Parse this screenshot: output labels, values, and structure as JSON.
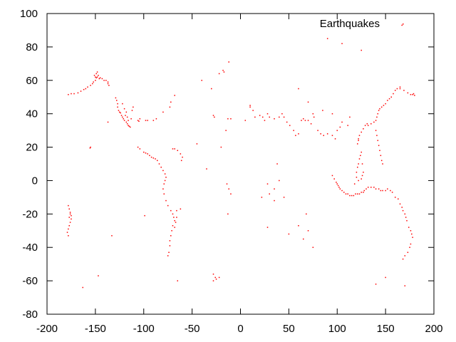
{
  "chart_data": {
    "type": "scatter",
    "title": "",
    "xlabel": "",
    "ylabel": "",
    "xlim": [
      -200,
      200
    ],
    "ylim": [
      -80,
      100
    ],
    "x_ticks": [
      -200,
      -150,
      -100,
      -50,
      0,
      50,
      100,
      150,
      200
    ],
    "y_ticks": [
      -80,
      -60,
      -40,
      -20,
      0,
      20,
      40,
      60,
      80,
      100
    ],
    "x_tick_labels": [
      "-200",
      "-150",
      "-100",
      "-50",
      "0",
      "50",
      "100",
      "150",
      "200"
    ],
    "y_tick_labels": [
      "-80",
      "-60",
      "-40",
      "-20",
      "0",
      "20",
      "40",
      "60",
      "80",
      "100"
    ],
    "grid": false,
    "legend_position": "top-right",
    "series": [
      {
        "name": "Earthquakes",
        "color": "#ff0000",
        "marker": "dot",
        "points": [
          [
            -178,
            51.5
          ],
          [
            -175,
            52
          ],
          [
            -172,
            52
          ],
          [
            -168,
            52.5
          ],
          [
            -165,
            53.5
          ],
          [
            -162,
            54.5
          ],
          [
            -160,
            55
          ],
          [
            -158,
            56
          ],
          [
            -155,
            57
          ],
          [
            -153,
            58
          ],
          [
            -152,
            59
          ],
          [
            -150,
            60
          ],
          [
            -149,
            61.5
          ],
          [
            -148,
            62
          ],
          [
            -147,
            63
          ],
          [
            -146,
            61
          ],
          [
            -145,
            61.5
          ],
          [
            -150,
            62
          ],
          [
            -151,
            63
          ],
          [
            -149,
            64
          ],
          [
            -148,
            65
          ],
          [
            -143,
            61
          ],
          [
            -141,
            60
          ],
          [
            -139,
            60
          ],
          [
            -137,
            59
          ],
          [
            -137,
            58
          ],
          [
            -136,
            57
          ],
          [
            -129,
            49.5
          ],
          [
            -128,
            48
          ],
          [
            -127,
            46
          ],
          [
            -127,
            44
          ],
          [
            -126,
            42
          ],
          [
            -125,
            41
          ],
          [
            -124,
            40.5
          ],
          [
            -123,
            39
          ],
          [
            -122,
            38
          ],
          [
            -121,
            37
          ],
          [
            -120,
            36
          ],
          [
            -118,
            35
          ],
          [
            -117,
            34
          ],
          [
            -116,
            33
          ],
          [
            -115,
            32.5
          ],
          [
            -114,
            32
          ],
          [
            -116,
            36
          ],
          [
            -117,
            38
          ],
          [
            -119,
            39
          ],
          [
            -118,
            41
          ],
          [
            -120,
            43
          ],
          [
            -122,
            46
          ],
          [
            -111,
            44
          ],
          [
            -112,
            42
          ],
          [
            -113,
            37
          ],
          [
            -106,
            36
          ],
          [
            -105,
            35.5
          ],
          [
            -104,
            37
          ],
          [
            -98,
            36
          ],
          [
            -96,
            36
          ],
          [
            -90,
            36
          ],
          [
            -87,
            37
          ],
          [
            -80,
            41
          ],
          [
            -73,
            44
          ],
          [
            -72,
            47
          ],
          [
            -68,
            51
          ],
          [
            -155.5,
            19.5
          ],
          [
            -155,
            20
          ],
          [
            -106,
            20
          ],
          [
            -104,
            19
          ],
          [
            -100,
            17
          ],
          [
            -98,
            16.5
          ],
          [
            -96,
            16
          ],
          [
            -94,
            15
          ],
          [
            -92,
            14
          ],
          [
            -90,
            13.5
          ],
          [
            -88,
            13
          ],
          [
            -86,
            12
          ],
          [
            -84,
            10
          ],
          [
            -82,
            8
          ],
          [
            -80,
            6
          ],
          [
            -78,
            4
          ],
          [
            -77,
            2
          ],
          [
            -78,
            0
          ],
          [
            -79,
            -2
          ],
          [
            -80,
            -5
          ],
          [
            -79,
            -8
          ],
          [
            -77,
            -12
          ],
          [
            -75,
            -15
          ],
          [
            -72,
            -18
          ],
          [
            -70,
            -20
          ],
          [
            -69,
            -22
          ],
          [
            -68,
            -24
          ],
          [
            -70,
            -27
          ],
          [
            -71,
            -30
          ],
          [
            -72,
            -33
          ],
          [
            -73,
            -36
          ],
          [
            -73,
            -39
          ],
          [
            -74,
            -43
          ],
          [
            -75,
            -45
          ],
          [
            -66,
            -22
          ],
          [
            -67,
            -25
          ],
          [
            -68,
            -28
          ],
          [
            -66,
            -18
          ],
          [
            -62,
            -17
          ],
          [
            -70,
            19
          ],
          [
            -68,
            19
          ],
          [
            -65,
            18
          ],
          [
            -62,
            16
          ],
          [
            -60,
            14
          ],
          [
            -61,
            12
          ],
          [
            -178,
            -15
          ],
          [
            -177,
            -17
          ],
          [
            -176,
            -19
          ],
          [
            -175,
            -21
          ],
          [
            -175,
            -23
          ],
          [
            -176,
            -25
          ],
          [
            -177,
            -27
          ],
          [
            -178,
            -29
          ],
          [
            -179,
            -31
          ],
          [
            -178,
            -33
          ],
          [
            -176,
            -20
          ],
          [
            -177,
            -22
          ],
          [
            -28,
            -56
          ],
          [
            -26,
            -58
          ],
          [
            -25,
            -59
          ],
          [
            -22,
            -58
          ],
          [
            -28,
            -60
          ],
          [
            -40,
            60
          ],
          [
            -30,
            55
          ],
          [
            -17,
            65
          ],
          [
            -18,
            66
          ],
          [
            -22,
            64
          ],
          [
            -12,
            71
          ],
          [
            -13,
            37
          ],
          [
            -10,
            37
          ],
          [
            -15,
            30
          ],
          [
            -27,
            38
          ],
          [
            -28,
            39
          ],
          [
            -20,
            20
          ],
          [
            -35,
            7
          ],
          [
            -14,
            -2
          ],
          [
            -12,
            -5
          ],
          [
            -10,
            -8
          ],
          [
            -13,
            -20
          ],
          [
            -45,
            22
          ],
          [
            10,
            44
          ],
          [
            13,
            42
          ],
          [
            15,
            38
          ],
          [
            20,
            39
          ],
          [
            23,
            38
          ],
          [
            25,
            36
          ],
          [
            28,
            40
          ],
          [
            30,
            38
          ],
          [
            35,
            37
          ],
          [
            40,
            38
          ],
          [
            43,
            40
          ],
          [
            45,
            38
          ],
          [
            48,
            35
          ],
          [
            51,
            33
          ],
          [
            55,
            30
          ],
          [
            57,
            27
          ],
          [
            60,
            28
          ],
          [
            63,
            36
          ],
          [
            65,
            37
          ],
          [
            67,
            36
          ],
          [
            70,
            36
          ],
          [
            73,
            34
          ],
          [
            76,
            38
          ],
          [
            80,
            30
          ],
          [
            83,
            28
          ],
          [
            86,
            27
          ],
          [
            90,
            28
          ],
          [
            95,
            27
          ],
          [
            98,
            25
          ],
          [
            100,
            30
          ],
          [
            103,
            32
          ],
          [
            10,
            45
          ],
          [
            5,
            36
          ],
          [
            38,
            10
          ],
          [
            40,
            0
          ],
          [
            35,
            -5
          ],
          [
            30,
            -8
          ],
          [
            28,
            -2
          ],
          [
            22,
            -10
          ],
          [
            35,
            -12
          ],
          [
            28,
            -28
          ],
          [
            68,
            -20
          ],
          [
            70,
            -30
          ],
          [
            60,
            -27
          ],
          [
            65,
            -35
          ],
          [
            75,
            -40
          ],
          [
            50,
            -32
          ],
          [
            45,
            -10
          ],
          [
            95,
            3
          ],
          [
            97,
            1
          ],
          [
            99,
            -1
          ],
          [
            100,
            -2
          ],
          [
            101,
            -3
          ],
          [
            102,
            -4
          ],
          [
            103,
            -5
          ],
          [
            105,
            -6
          ],
          [
            107,
            -7
          ],
          [
            109,
            -8
          ],
          [
            111,
            -8
          ],
          [
            113,
            -9
          ],
          [
            115,
            -9
          ],
          [
            117,
            -9
          ],
          [
            119,
            -8
          ],
          [
            121,
            -8
          ],
          [
            123,
            -8
          ],
          [
            125,
            -7
          ],
          [
            127,
            -7
          ],
          [
            128,
            -6
          ],
          [
            130,
            -5
          ],
          [
            132,
            -4
          ],
          [
            135,
            -4
          ],
          [
            138,
            -4
          ],
          [
            140,
            -5
          ],
          [
            143,
            -5
          ],
          [
            145,
            -6
          ],
          [
            147,
            -6
          ],
          [
            150,
            -6
          ],
          [
            152,
            -5
          ],
          [
            155,
            -6
          ],
          [
            157,
            -7
          ],
          [
            160,
            -10
          ],
          [
            163,
            -11
          ],
          [
            165,
            -14
          ],
          [
            167,
            -16
          ],
          [
            168,
            -18
          ],
          [
            170,
            -20
          ],
          [
            171,
            -22
          ],
          [
            172,
            -24
          ],
          [
            174,
            -28
          ],
          [
            176,
            -30
          ],
          [
            177,
            -32
          ],
          [
            178,
            -34
          ],
          [
            176,
            -38
          ],
          [
            175,
            -40
          ],
          [
            173,
            -43
          ],
          [
            170,
            -45
          ],
          [
            168,
            -47
          ],
          [
            120,
            5
          ],
          [
            121,
            8
          ],
          [
            122,
            10
          ],
          [
            123,
            13
          ],
          [
            124,
            15
          ],
          [
            125,
            17
          ],
          [
            126,
            10
          ],
          [
            127,
            5
          ],
          [
            126,
            3
          ],
          [
            125,
            1
          ],
          [
            122,
            0
          ],
          [
            120,
            2
          ],
          [
            118,
            -2
          ],
          [
            121,
            22
          ],
          [
            122,
            24
          ],
          [
            122,
            25
          ],
          [
            123,
            27
          ],
          [
            125,
            29
          ],
          [
            127,
            31
          ],
          [
            129,
            33
          ],
          [
            131,
            34
          ],
          [
            132,
            33
          ],
          [
            135,
            34
          ],
          [
            138,
            35
          ],
          [
            140,
            36
          ],
          [
            141,
            38
          ],
          [
            142,
            40
          ],
          [
            143,
            42
          ],
          [
            144,
            43
          ],
          [
            146,
            44
          ],
          [
            148,
            45
          ],
          [
            150,
            46
          ],
          [
            152,
            48
          ],
          [
            154,
            49
          ],
          [
            156,
            50
          ],
          [
            158,
            52
          ],
          [
            160,
            54
          ],
          [
            162,
            55
          ],
          [
            165,
            56
          ],
          [
            140,
            30
          ],
          [
            141,
            27
          ],
          [
            142,
            24
          ],
          [
            143,
            21
          ],
          [
            144,
            18
          ],
          [
            145,
            15
          ],
          [
            146,
            12
          ],
          [
            147,
            10
          ],
          [
            178,
            51.5
          ],
          [
            179,
            52
          ],
          [
            180,
            51
          ],
          [
            176,
            51.5
          ],
          [
            173,
            52.5
          ],
          [
            169,
            54
          ],
          [
            165,
            55
          ],
          [
            90,
            85
          ],
          [
            105,
            82
          ],
          [
            125,
            78
          ],
          [
            167,
            93
          ],
          [
            113,
            38
          ],
          [
            111,
            33
          ],
          [
            105,
            35
          ],
          [
            95,
            40
          ],
          [
            85,
            42
          ],
          [
            75,
            40
          ],
          [
            70,
            47
          ],
          [
            60,
            55
          ],
          [
            150,
            -58
          ],
          [
            140,
            -62
          ],
          [
            170,
            -63
          ],
          [
            -65,
            -60
          ],
          [
            -163,
            -64
          ],
          [
            -147,
            -57
          ],
          [
            -133,
            -33
          ],
          [
            -137,
            35
          ],
          [
            -99,
            -21
          ]
        ]
      }
    ]
  }
}
